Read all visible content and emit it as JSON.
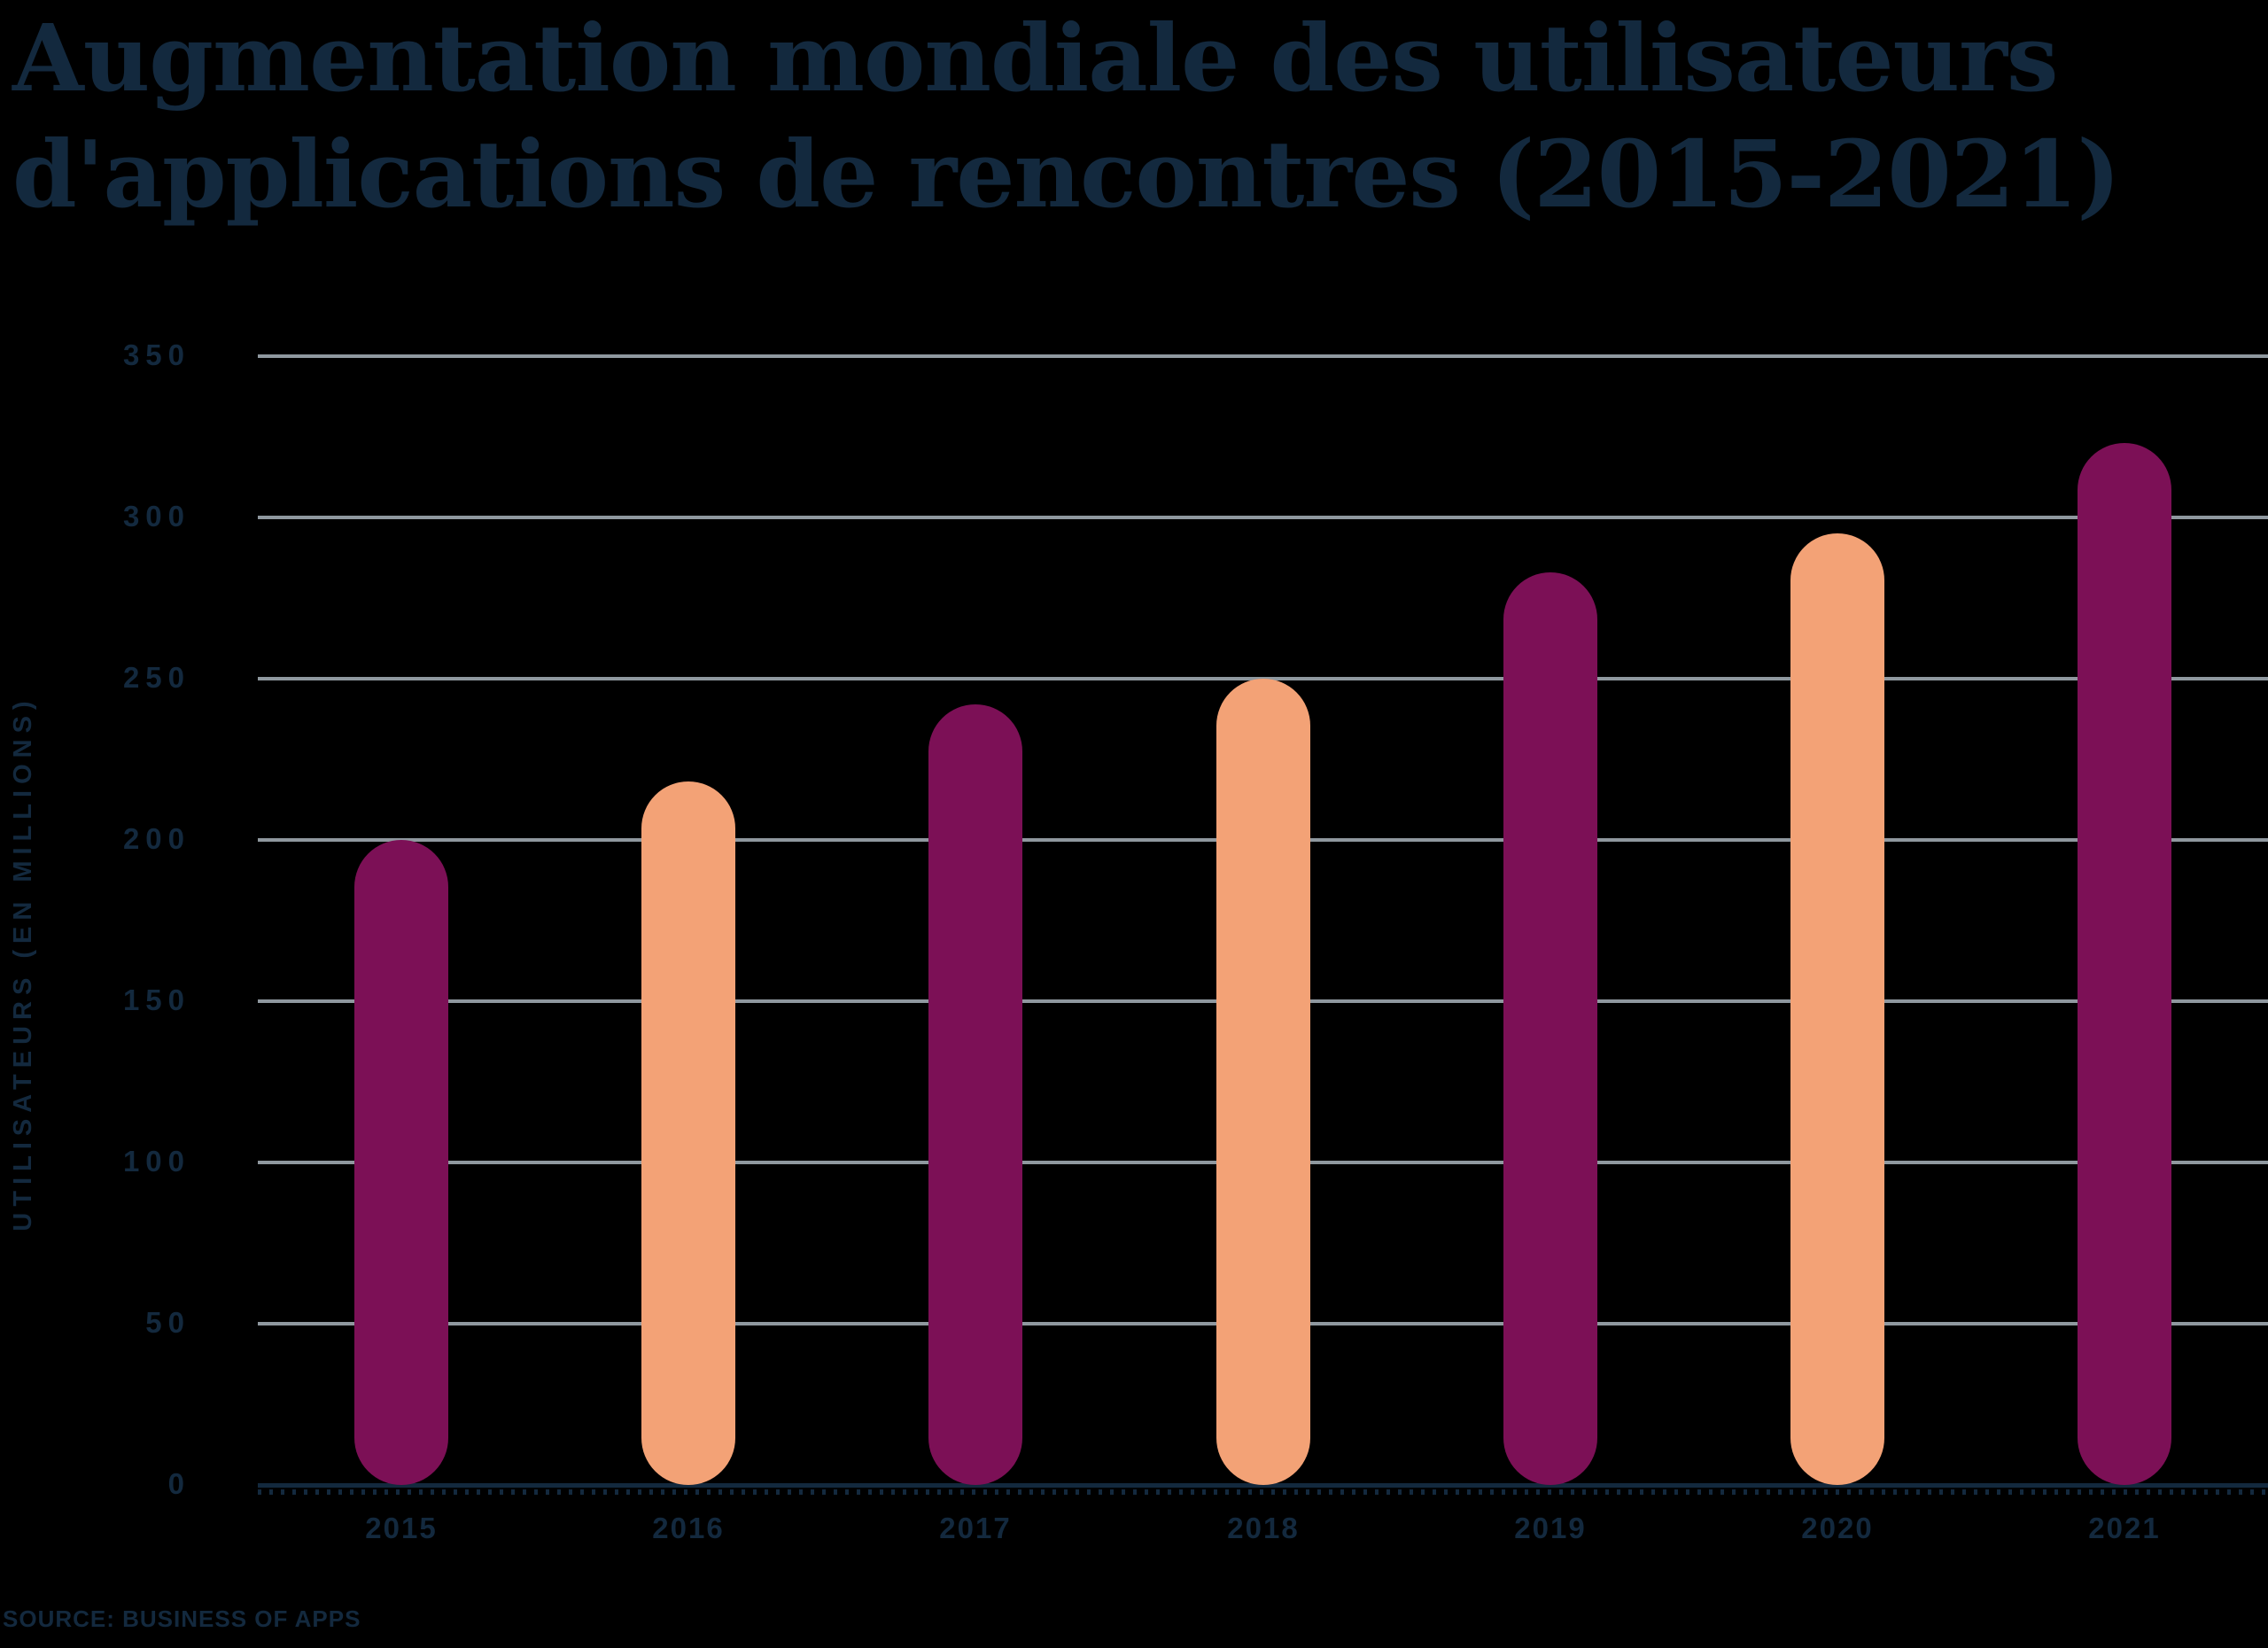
{
  "title": {
    "line1": "Augmentation mondiale des utilisateurs",
    "line2": "d'applications de rencontres (2015-2021)"
  },
  "y_axis": {
    "title": "UTILISATEURS (EN MILLIONS)",
    "tick_labels": [
      "0",
      "50",
      "100",
      "150",
      "200",
      "250",
      "300",
      "350"
    ]
  },
  "source": "SOURCE: BUSINESS OF APPS",
  "colors": {
    "background": "#000000",
    "text_navy": "#13293E",
    "gridline": "#8F989F",
    "axis_line": "#13293E",
    "bar_purple": "#7C1056",
    "bar_peach": "#F3A276"
  },
  "chart_data": {
    "type": "bar",
    "title": "Augmentation mondiale des utilisateurs d'applications de rencontres (2015-2021)",
    "categories": [
      "2015",
      "2016",
      "2017",
      "2018",
      "2019",
      "2020",
      "2021"
    ],
    "values": [
      200,
      218,
      242,
      250,
      283,
      295,
      323
    ],
    "bar_colors": [
      "#7C1056",
      "#F3A276",
      "#7C1056",
      "#F3A276",
      "#7C1056",
      "#F3A276",
      "#7C1056"
    ],
    "xlabel": "",
    "ylabel": "UTILISATEURS (EN MILLIONS)",
    "ylim": [
      0,
      350
    ],
    "y_ticks": [
      0,
      50,
      100,
      150,
      200,
      250,
      300,
      350
    ],
    "grid": "horizontal",
    "legend": "none",
    "bar_style": "rounded-capsule",
    "source": "SOURCE: BUSINESS OF APPS"
  }
}
